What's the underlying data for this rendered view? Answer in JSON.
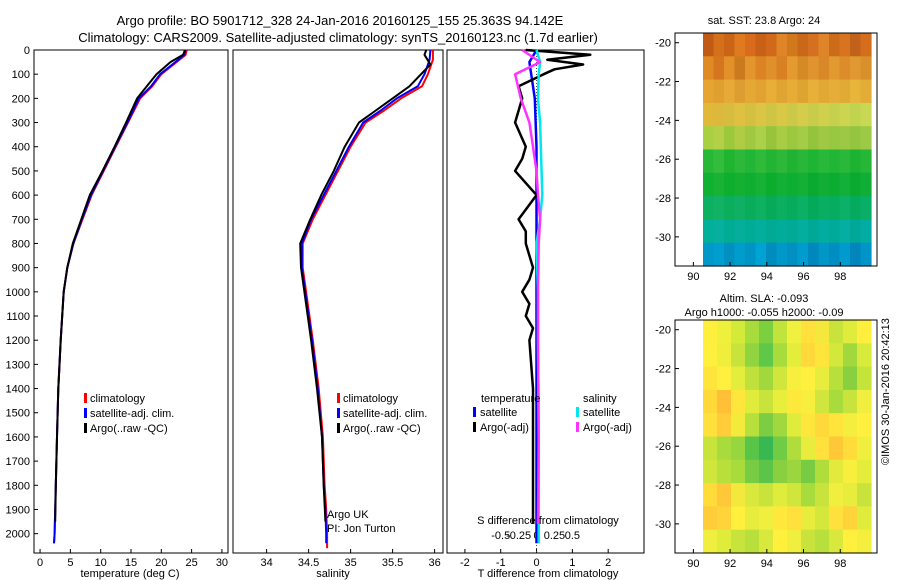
{
  "header": {
    "title_line1": "Argo profile: BO 5901712_328 24-Jan-2016 20160125_155 25.363S 94.142E",
    "title_line2": "Climatology: CARS2009. Satellite-adjusted climatology: synTS_20160123.nc (1.7d earlier)"
  },
  "stamp": "©IMOS 30-Jan-2016 20:42:13",
  "colors": {
    "climatology": "#ff0000",
    "satellite": "#0000ff",
    "argo": "#000000",
    "salinity_satellite": "#00e5ee",
    "salinity_argo": "#ff33ff"
  },
  "chart_data": [
    {
      "type": "line",
      "id": "temperature-profile",
      "xlabel": "temperature (deg C)",
      "ylabel": "",
      "xlim": [
        -1,
        31
      ],
      "ylim": [
        2080,
        0
      ],
      "xticks": [
        0,
        5,
        10,
        15,
        20,
        25,
        30
      ],
      "yticks": [
        0,
        100,
        200,
        300,
        400,
        500,
        600,
        700,
        800,
        900,
        1000,
        1100,
        1200,
        1300,
        1400,
        1500,
        1600,
        1700,
        1800,
        1900,
        2000
      ],
      "legend": [
        "climatology",
        "satellite-adj. clim.",
        "Argo(..raw -QC)"
      ],
      "legend_position": "lower-left",
      "series": [
        {
          "name": "climatology",
          "color": "#ff0000",
          "x": [
            24.2,
            24.0,
            22.5,
            20.0,
            18.5,
            16.5,
            14.5,
            12.5,
            10.5,
            8.5,
            7.0,
            5.5,
            4.5,
            3.9,
            3.4,
            3.0,
            2.8,
            2.6,
            2.5,
            2.4,
            2.3
          ],
          "y": [
            0,
            20,
            50,
            100,
            150,
            200,
            300,
            400,
            500,
            600,
            700,
            800,
            900,
            1000,
            1200,
            1400,
            1600,
            1800,
            1900,
            2000,
            2040
          ]
        },
        {
          "name": "satellite-adj. clim.",
          "color": "#0000ff",
          "x": [
            24.0,
            23.8,
            22.3,
            19.8,
            18.3,
            16.3,
            14.4,
            12.4,
            10.4,
            8.4,
            6.9,
            5.5,
            4.5,
            3.9,
            3.4,
            3.0,
            2.8,
            2.6,
            2.5,
            2.4,
            2.3
          ],
          "y": [
            0,
            20,
            50,
            100,
            150,
            200,
            300,
            400,
            500,
            600,
            700,
            800,
            900,
            1000,
            1200,
            1400,
            1600,
            1800,
            1900,
            2000,
            2040
          ]
        },
        {
          "name": "Argo(..raw -QC)",
          "color": "#000000",
          "x": [
            23.9,
            23.6,
            21.5,
            19.2,
            17.6,
            16.0,
            14.2,
            12.3,
            10.3,
            8.2,
            6.8,
            5.4,
            4.5,
            3.9,
            3.4,
            3.0,
            2.8,
            2.6,
            2.5
          ],
          "y": [
            0,
            20,
            50,
            100,
            150,
            200,
            300,
            400,
            500,
            600,
            700,
            800,
            900,
            1000,
            1200,
            1400,
            1600,
            1800,
            1950
          ]
        }
      ]
    },
    {
      "type": "line",
      "id": "salinity-profile",
      "xlabel": "salinity",
      "ylabel": "",
      "xlim": [
        33.6,
        36.1
      ],
      "ylim": [
        2080,
        0
      ],
      "xticks": [
        34,
        34.5,
        35,
        35.5,
        36
      ],
      "xticklabels": [
        "34",
        "34.5",
        "35",
        "35.5",
        "36"
      ],
      "legend": [
        "climatology",
        "satellite-adj. clim.",
        "Argo(..raw -QC)"
      ],
      "legend_position": "lower-right",
      "annotations": [
        "Argo UK",
        "PI: Jon Turton"
      ],
      "series": [
        {
          "name": "climatology",
          "color": "#ff0000",
          "x": [
            35.98,
            35.98,
            35.92,
            35.85,
            35.6,
            35.4,
            35.18,
            35.0,
            34.85,
            34.7,
            34.55,
            34.43,
            34.43,
            34.47,
            34.55,
            34.62,
            34.67,
            34.69,
            34.71,
            34.72,
            34.72,
            34.72
          ],
          "y": [
            0,
            40,
            100,
            150,
            200,
            250,
            300,
            400,
            500,
            600,
            700,
            800,
            900,
            1000,
            1200,
            1400,
            1600,
            1800,
            1900,
            2000,
            2040,
            2060
          ]
        },
        {
          "name": "satellite-adj. clim.",
          "color": "#0000ff",
          "x": [
            35.95,
            35.94,
            35.88,
            35.8,
            35.55,
            35.36,
            35.15,
            34.98,
            34.83,
            34.68,
            34.53,
            34.42,
            34.42,
            34.46,
            34.54,
            34.61,
            34.66,
            34.68,
            34.7,
            34.71,
            34.71
          ],
          "y": [
            0,
            40,
            100,
            150,
            200,
            250,
            300,
            400,
            500,
            600,
            700,
            800,
            900,
            1000,
            1200,
            1400,
            1600,
            1800,
            1900,
            2000,
            2040
          ]
        },
        {
          "name": "Argo(..raw -QC)",
          "color": "#000000",
          "x": [
            35.9,
            35.88,
            35.95,
            35.7,
            35.5,
            35.3,
            35.1,
            34.93,
            34.8,
            34.65,
            34.52,
            34.4,
            34.41,
            34.45,
            34.53,
            34.6,
            34.66,
            34.68,
            34.7
          ],
          "y": [
            0,
            20,
            60,
            150,
            200,
            250,
            300,
            400,
            500,
            600,
            700,
            800,
            900,
            1000,
            1200,
            1400,
            1600,
            1800,
            1950
          ]
        }
      ]
    },
    {
      "type": "line",
      "id": "difference-profile",
      "xlabel": "T difference from climatology",
      "xlabel_top": "S difference from climatology",
      "xlim": [
        -2.5,
        3.0
      ],
      "ylim": [
        2080,
        0
      ],
      "xticks": [
        -2,
        -1,
        0,
        1,
        2
      ],
      "xticklabels": [
        "-2",
        "-1",
        "0",
        "1",
        "2"
      ],
      "s_ticks": [
        -0.5,
        -0.25,
        0,
        0.25,
        0.5
      ],
      "s_ticklabels": [
        "-0.5",
        "-0.25",
        "0",
        "0.25",
        "0.5"
      ],
      "legend_groups": [
        "temperature",
        "salinity"
      ],
      "legend": [
        "satellite",
        "Argo(-adj)",
        "satellite",
        "Argo(-adj)"
      ],
      "legend_position": "lower-center",
      "series": [
        {
          "name": "satellite",
          "group": "temperature",
          "color": "#0000ff",
          "x": [
            0.0,
            -0.2,
            -0.15,
            -0.1,
            -0.05,
            0.0,
            0.0,
            0.0,
            0.0,
            0.0,
            0.0
          ],
          "y": [
            0,
            50,
            100,
            150,
            200,
            400,
            600,
            800,
            1200,
            1600,
            2040
          ]
        },
        {
          "name": "Argo(-adj)",
          "group": "temperature",
          "color": "#000000",
          "x": [
            -0.3,
            1.5,
            0.3,
            1.3,
            0.5,
            0.2,
            -0.5,
            -0.4,
            -0.6,
            -0.3,
            -0.4,
            -0.6,
            0.0,
            -0.5,
            -0.3,
            -0.3,
            -0.1,
            -0.2,
            -0.4,
            -0.2,
            -0.3,
            -0.1,
            -0.2,
            -0.1,
            -0.1,
            -0.1,
            -0.1
          ],
          "y": [
            0,
            20,
            40,
            60,
            80,
            100,
            150,
            200,
            300,
            400,
            450,
            500,
            600,
            700,
            750,
            800,
            900,
            950,
            1000,
            1050,
            1100,
            1150,
            1200,
            1400,
            1600,
            1800,
            1960
          ]
        },
        {
          "name": "satellite",
          "group": "salinity",
          "color": "#00e5ee",
          "x": [
            0.0,
            0.05,
            0.03,
            0.02,
            0.05,
            0.06,
            0.08,
            0.05,
            0.0,
            0.02,
            0.02,
            0.03,
            0.03
          ],
          "y": [
            0,
            50,
            100,
            200,
            300,
            400,
            600,
            700,
            800,
            1000,
            1200,
            1600,
            2040
          ]
        },
        {
          "name": "Argo(-adj)",
          "group": "salinity",
          "color": "#ff33ff",
          "x": [
            -0.2,
            0.05,
            -0.3,
            -0.22,
            -0.1,
            -0.05,
            0.0,
            0.02,
            0.05,
            0.03,
            0.02,
            0.02,
            0.03,
            0.02
          ],
          "y": [
            0,
            50,
            100,
            200,
            300,
            400,
            500,
            600,
            700,
            800,
            1000,
            1200,
            1600,
            1960
          ]
        }
      ]
    },
    {
      "type": "heatmap",
      "id": "sst-map",
      "title": "sat. SST: 23.8 Argo: 24",
      "xlim": [
        89,
        100
      ],
      "ylim": [
        -31.5,
        -19.5
      ],
      "xticks": [
        90,
        92,
        94,
        96,
        98
      ],
      "yticks": [
        -20,
        -22,
        -24,
        -26,
        -28,
        -30
      ],
      "rows": [
        [
          "#c05a14",
          "#d4701a",
          "#cc6418",
          "#e07a20",
          "#d86c1c",
          "#c86018",
          "#d06a1a",
          "#e08428",
          "#d0781c",
          "#c86818",
          "#d47020",
          "#e0842a",
          "#cc6c1a",
          "#d87420",
          "#c2621a",
          "#d46e1c"
        ],
        [
          "#e08a24",
          "#d47620",
          "#e29028",
          "#cc7a1e",
          "#e4962c",
          "#dc8424",
          "#e0902a",
          "#d88022",
          "#e49a2e",
          "#d68a26",
          "#e09430",
          "#d88828",
          "#e29a30",
          "#dc8c2a",
          "#e29832",
          "#d8902a"
        ],
        [
          "#e8a430",
          "#e0a030",
          "#e8aa36",
          "#dc9e30",
          "#e6a834",
          "#e2a232",
          "#e8ae38",
          "#e0a432",
          "#e6ac36",
          "#dea432",
          "#e8b038",
          "#e2a834",
          "#e6ae38",
          "#e0aa34",
          "#e8b43a",
          "#e2ac36"
        ],
        [
          "#e2b83a",
          "#dcb83c",
          "#d8bc40",
          "#e0c040",
          "#d4c040",
          "#dcc444",
          "#d0c444",
          "#d8c846",
          "#ccc848",
          "#d4cc4a",
          "#c8cc4a",
          "#d0d04c",
          "#c4d04e",
          "#ccd450",
          "#c0d450",
          "#c8d852"
        ],
        [
          "#a8d040",
          "#b4d048",
          "#9cc83c",
          "#b0cc44",
          "#a0c840",
          "#acd048",
          "#98c43c",
          "#a8cc44",
          "#9cc840",
          "#a4cc46",
          "#94c43c",
          "#a0c844",
          "#98c842",
          "#9cc846",
          "#94c440",
          "#9cca46"
        ],
        [
          "#28b838",
          "#34bc3c",
          "#20b430",
          "#2cb838",
          "#22b636",
          "#30ba3a",
          "#24b434",
          "#2eb83a",
          "#20b232",
          "#2ab638",
          "#1eb434",
          "#28b83a",
          "#22b636",
          "#2ab83a",
          "#1cb232",
          "#26b638"
        ],
        [
          "#10b030",
          "#18b234",
          "#0eae2e",
          "#14b032",
          "#10ae30",
          "#16b236",
          "#0cac2e",
          "#12b034",
          "#0eae32",
          "#14b036",
          "#0aaa30",
          "#12ae34",
          "#0cac32",
          "#12b038",
          "#0aaa30",
          "#10ae36"
        ],
        [
          "#0cb060",
          "#12b266",
          "#0aae5c",
          "#10b064",
          "#08ac5a",
          "#0eb062",
          "#06aa58",
          "#0cae60",
          "#06ac5c",
          "#0cb064",
          "#04aa5a",
          "#0aae62",
          "#06ac60",
          "#0cb068",
          "#04aa5e",
          "#0aae66"
        ],
        [
          "#00b098",
          "#06b09c",
          "#00ac94",
          "#04ae9a",
          "#00ac96",
          "#04ae9c",
          "#00aa94",
          "#02ac9a",
          "#00aa96",
          "#04ae9e",
          "#00a898",
          "#02ac9e",
          "#00aa9a",
          "#04aea0",
          "#00a89a",
          "#02aca2"
        ],
        [
          "#0098c8",
          "#009ed0",
          "#0090c0",
          "#009ccc",
          "#0094c4",
          "#00a2d4",
          "#008cbc",
          "#0098c8",
          "#0090c2",
          "#009cd0",
          "#0088bc",
          "#0096c8",
          "#008ec2",
          "#009ace",
          "#0086bc",
          "#0094c8"
        ]
      ]
    },
    {
      "type": "heatmap",
      "id": "sla-map",
      "title": "Altim. SLA: -0.093",
      "subtitle": "Argo h1000: -0.055 h2000: -0.09",
      "xlim": [
        89,
        100
      ],
      "ylim": [
        -31.5,
        -19.5
      ],
      "xticks": [
        90,
        92,
        94,
        96,
        98
      ],
      "yticks": [
        -20,
        -22,
        -24,
        -26,
        -28,
        -30
      ],
      "rows": [
        [
          "#ffee3c",
          "#eef03c",
          "#d4ea38",
          "#a8dc3c",
          "#7cd040",
          "#c0e43c",
          "#f0f03e",
          "#ffe03c",
          "#f4e83c",
          "#c8e43c",
          "#e0ec3c",
          "#ffee3e"
        ],
        [
          "#fff03e",
          "#f0ee3c",
          "#c8e43c",
          "#90d440",
          "#60c848",
          "#a8dc3c",
          "#e4ec3c",
          "#ffd83a",
          "#ffe43c",
          "#d4e83c",
          "#a0d83e",
          "#d8ea3c"
        ],
        [
          "#ffe43c",
          "#fff040",
          "#e4ec3c",
          "#c0e03c",
          "#a0d83e",
          "#d0e63c",
          "#f8ee3e",
          "#fff03e",
          "#e8ec3c",
          "#b8e03c",
          "#88d040",
          "#c4e43c"
        ],
        [
          "#ffd83a",
          "#ffc038",
          "#ffe63c",
          "#e0ec3c",
          "#c8e43c",
          "#e8ee3c",
          "#ffe83c",
          "#f8ee3e",
          "#d0e63c",
          "#a8dc3c",
          "#c8e43c",
          "#f0ee3e"
        ],
        [
          "#ffe03c",
          "#ffcc3a",
          "#f4ea3c",
          "#b8e03c",
          "#7ccc44",
          "#a0d83e",
          "#e0ec3c",
          "#ffe63c",
          "#ffd83a",
          "#ffe43c",
          "#f4ee3e",
          "#fff040"
        ],
        [
          "#c8e43c",
          "#a8dc3c",
          "#98d640",
          "#58c448",
          "#38b850",
          "#70cc44",
          "#b0dc3c",
          "#e8ec3c",
          "#ffe03c",
          "#ffc838",
          "#ffdc3a",
          "#f0ee3e"
        ],
        [
          "#d0e63c",
          "#b8e03c",
          "#a8dc3c",
          "#78cc44",
          "#5cc448",
          "#88d040",
          "#9cd63e",
          "#78cc44",
          "#b0dc3c",
          "#e4ea3c",
          "#f8ee3e",
          "#e4ec3c"
        ],
        [
          "#ffdc3a",
          "#ffc838",
          "#f4e83c",
          "#d8e83c",
          "#c8e43c",
          "#e0ec3c",
          "#d0e63c",
          "#a8dc3c",
          "#c8e43c",
          "#f0ee3e",
          "#e8ec3c",
          "#c8e43c"
        ],
        [
          "#ffcc3a",
          "#ffd43a",
          "#fff03e",
          "#e8ec3c",
          "#f0ee3e",
          "#ffe83c",
          "#ffe03c",
          "#e8ec3c",
          "#d4e83c",
          "#ffe03c",
          "#ffd43a",
          "#e0ec3c"
        ],
        [
          "#f0ee3e",
          "#e0ec3c",
          "#c8e43c",
          "#b8e03c",
          "#d8e83c",
          "#fff03e",
          "#f0ee3e",
          "#c8e43c",
          "#b8e03c",
          "#d8e83c",
          "#fff03e",
          "#f4ee3e"
        ]
      ]
    }
  ]
}
